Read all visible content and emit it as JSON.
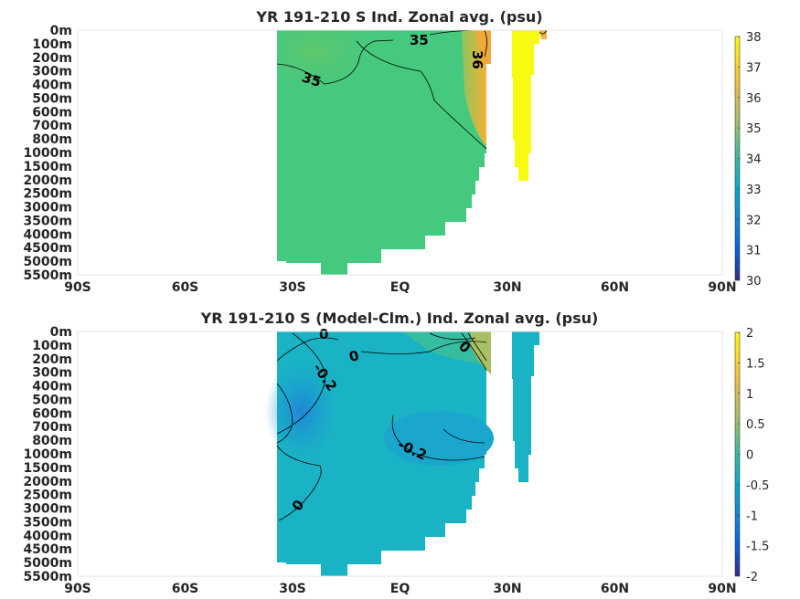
{
  "chart_data": [
    {
      "type": "heatmap",
      "title": "YR 191-210 S Ind. Zonal avg. (psu)",
      "x_ticks": [
        "90S",
        "60S",
        "30S",
        "EQ",
        "30N",
        "60N",
        "90N"
      ],
      "x_range": [
        -90,
        90
      ],
      "y_ticks": [
        "0m",
        "100m",
        "200m",
        "300m",
        "400m",
        "500m",
        "600m",
        "700m",
        "800m",
        "1000m",
        "1500m",
        "2000m",
        "2500m",
        "3000m",
        "3500m",
        "4000m",
        "4500m",
        "5000m",
        "5500m"
      ],
      "colorbar": {
        "min": 30,
        "max": 38,
        "ticks": [
          "30",
          "31",
          "32",
          "33",
          "34",
          "35",
          "36",
          "37",
          "38"
        ],
        "colormap": "parula"
      },
      "contour_labels": [
        "35",
        "35",
        "36"
      ],
      "data_extent_lat": [
        -35,
        25
      ],
      "separate_column_lat": [
        32,
        35
      ],
      "separate_column_value": 38,
      "typical_interior_value": 34.8,
      "colors": {
        "interior": "#45c97f",
        "surface_north": "#f0b43a",
        "column": "#f8fa12"
      }
    },
    {
      "type": "heatmap",
      "title": "YR 191-210 S (Model-Clm.) Ind. Zonal avg. (psu)",
      "x_ticks": [
        "90S",
        "60S",
        "30S",
        "EQ",
        "30N",
        "60N",
        "90N"
      ],
      "x_range": [
        -90,
        90
      ],
      "y_ticks": [
        "0m",
        "100m",
        "200m",
        "300m",
        "400m",
        "500m",
        "600m",
        "700m",
        "800m",
        "1000m",
        "1500m",
        "2000m",
        "2500m",
        "3000m",
        "3500m",
        "4000m",
        "4500m",
        "5000m",
        "5500m"
      ],
      "colorbar": {
        "min": -2,
        "max": 2,
        "ticks": [
          "-2",
          "-1.5",
          "-1",
          "-0.5",
          "0",
          "0.5",
          "1",
          "1.5",
          "2"
        ],
        "colormap": "parula"
      },
      "contour_labels": [
        "0",
        "0",
        "0",
        "-0.2",
        "-0.2",
        "0"
      ],
      "data_extent_lat": [
        -35,
        25
      ],
      "separate_column_lat": [
        32,
        35
      ],
      "typical_interior_value": -0.2,
      "colors": {
        "interior": "#19b3c5",
        "low": "#1f86d8",
        "high": "#36bda0"
      }
    }
  ]
}
